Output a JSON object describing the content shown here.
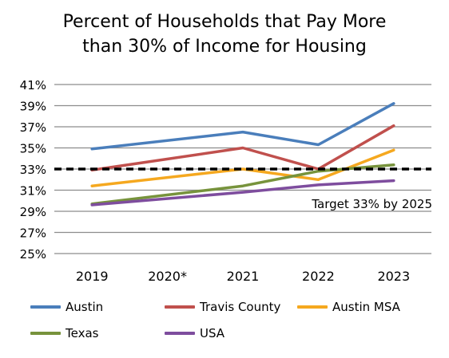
{
  "chart_data": {
    "type": "line",
    "title_line1": "Percent of Households that Pay More",
    "title_line2": "than 30% of Income for Housing",
    "categories": [
      "2019",
      "2020*",
      "2021",
      "2022",
      "2023"
    ],
    "y_ticks": [
      "41%",
      "39%",
      "37%",
      "35%",
      "33%",
      "31%",
      "29%",
      "27%",
      "25%"
    ],
    "ylim": [
      25,
      41
    ],
    "grid": true,
    "series": [
      {
        "name": "Austin",
        "color": "#4a7ebb",
        "values": [
          34.9,
          null,
          36.5,
          35.3,
          39.2
        ]
      },
      {
        "name": "Travis County",
        "color": "#c0504d",
        "values": [
          32.9,
          null,
          35.0,
          33.0,
          37.1
        ]
      },
      {
        "name": "Austin MSA",
        "color": "#f5a81f",
        "values": [
          31.4,
          null,
          33.0,
          32.0,
          34.8
        ]
      },
      {
        "name": "Texas",
        "color": "#77933c",
        "values": [
          29.7,
          null,
          31.4,
          32.8,
          33.4
        ]
      },
      {
        "name": "USA",
        "color": "#7e4d9e",
        "values": [
          29.6,
          null,
          30.8,
          31.5,
          31.9
        ]
      }
    ],
    "target": {
      "value": 33,
      "label": "Target 33% by 2025"
    },
    "legend_position": "bottom"
  }
}
